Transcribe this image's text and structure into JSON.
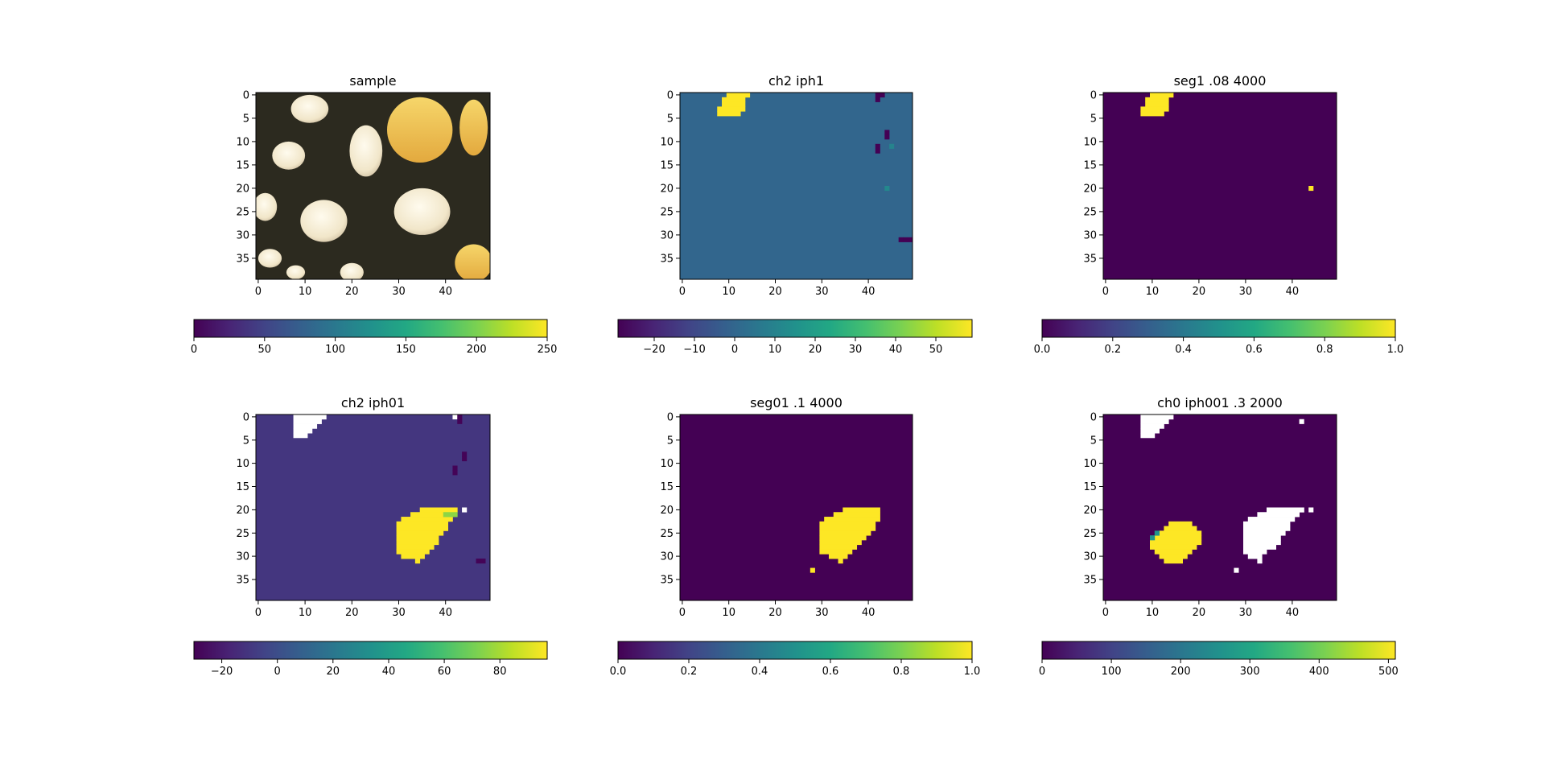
{
  "chart_data": [
    {
      "type": "heatmap",
      "title": "sample",
      "image": "rgb-photo",
      "grid": false,
      "xlim": [
        -0.5,
        49.5
      ],
      "ylim": [
        39.5,
        -0.5
      ],
      "xticks": [
        "0",
        "10",
        "20",
        "30",
        "40"
      ],
      "yticks": [
        "0",
        "5",
        "10",
        "15",
        "20",
        "25",
        "30",
        "35"
      ],
      "colorbar": {
        "min": 0,
        "max": 250,
        "ticks": [
          "0",
          "50",
          "100",
          "150",
          "200",
          "250"
        ],
        "orientation": "horizontal",
        "colormap": "viridis"
      },
      "features": [
        {
          "kind": "ellipse",
          "cx": 11,
          "cy": 3,
          "rx": 4,
          "ry": 3,
          "value": "cream"
        },
        {
          "kind": "ellipse",
          "cx": 23,
          "cy": 12,
          "rx": 3.5,
          "ry": 5.5,
          "value": "cream"
        },
        {
          "kind": "ellipse",
          "cx": 6.5,
          "cy": 13,
          "rx": 3.5,
          "ry": 3,
          "value": "cream"
        },
        {
          "kind": "ellipse",
          "cx": 14,
          "cy": 27,
          "rx": 5,
          "ry": 4.5,
          "value": "cream"
        },
        {
          "kind": "ellipse",
          "cx": 35,
          "cy": 25,
          "rx": 6,
          "ry": 5,
          "value": "cream"
        },
        {
          "kind": "ellipse",
          "cx": 1.5,
          "cy": 24,
          "rx": 2.5,
          "ry": 3,
          "value": "cream"
        },
        {
          "kind": "ellipse",
          "cx": 2.5,
          "cy": 35,
          "rx": 2.5,
          "ry": 2,
          "value": "cream"
        },
        {
          "kind": "ellipse",
          "cx": 20,
          "cy": 38,
          "rx": 2.5,
          "ry": 2,
          "value": "cream"
        },
        {
          "kind": "ellipse",
          "cx": 8,
          "cy": 38,
          "rx": 2,
          "ry": 1.5,
          "value": "cream"
        },
        {
          "kind": "ellipse",
          "cx": 34.5,
          "cy": 7.5,
          "rx": 7,
          "ry": 7,
          "value": "golden"
        },
        {
          "kind": "ellipse",
          "cx": 46,
          "cy": 7,
          "rx": 3,
          "ry": 6,
          "value": "golden"
        },
        {
          "kind": "ellipse",
          "cx": 46,
          "cy": 36,
          "rx": 4,
          "ry": 4,
          "value": "golden"
        }
      ]
    },
    {
      "type": "heatmap",
      "title": "ch2 iph1",
      "grid": false,
      "xlim": [
        -0.5,
        49.5
      ],
      "ylim": [
        39.5,
        -0.5
      ],
      "xticks": [
        "0",
        "10",
        "20",
        "30",
        "40"
      ],
      "yticks": [
        "0",
        "5",
        "10",
        "15",
        "20",
        "25",
        "30",
        "35"
      ],
      "background_value": 0,
      "colorbar": {
        "min": -29,
        "max": 59,
        "ticks": [
          "−20",
          "−10",
          "0",
          "10",
          "20",
          "30",
          "40",
          "50"
        ],
        "tick_values": [
          -20,
          -10,
          0,
          10,
          20,
          30,
          40,
          50
        ],
        "orientation": "horizontal",
        "colormap": "viridis"
      },
      "regions": [
        {
          "value": 59,
          "rows": [
            [
              0,
              10,
              14
            ],
            [
              1,
              9,
              13
            ],
            [
              2,
              9,
              13
            ],
            [
              3,
              8,
              13
            ],
            [
              4,
              8,
              12
            ]
          ]
        }
      ],
      "pixels": [
        [
          42,
          0,
          -29
        ],
        [
          42,
          1,
          -29
        ],
        [
          43,
          0,
          -29
        ],
        [
          44,
          8,
          -29
        ],
        [
          44,
          9,
          -29
        ],
        [
          42,
          11,
          -29
        ],
        [
          42,
          12,
          -29
        ],
        [
          45,
          11,
          10
        ],
        [
          44,
          20,
          12
        ],
        [
          47,
          31,
          -29
        ],
        [
          48,
          31,
          -29
        ],
        [
          49,
          31,
          -29
        ]
      ]
    },
    {
      "type": "heatmap",
      "title": "seg1 .08 4000",
      "grid": false,
      "xlim": [
        -0.5,
        49.5
      ],
      "ylim": [
        39.5,
        -0.5
      ],
      "xticks": [
        "0",
        "10",
        "20",
        "30",
        "40"
      ],
      "yticks": [
        "0",
        "5",
        "10",
        "15",
        "20",
        "25",
        "30",
        "35"
      ],
      "background_value": 0,
      "colorbar": {
        "min": 0.0,
        "max": 1.0,
        "ticks": [
          "0.0",
          "0.2",
          "0.4",
          "0.6",
          "0.8",
          "1.0"
        ],
        "tick_values": [
          0,
          0.2,
          0.4,
          0.6,
          0.8,
          1
        ],
        "orientation": "horizontal",
        "colormap": "viridis"
      },
      "regions": [
        {
          "value": 1,
          "rows": [
            [
              0,
              10,
              14
            ],
            [
              1,
              9,
              13
            ],
            [
              2,
              9,
              13
            ],
            [
              3,
              8,
              13
            ],
            [
              4,
              8,
              12
            ]
          ]
        }
      ],
      "pixels": [
        [
          44,
          20,
          1
        ]
      ]
    },
    {
      "type": "heatmap",
      "title": "ch2 iph01",
      "grid": false,
      "xlim": [
        -0.5,
        49.5
      ],
      "ylim": [
        39.5,
        -0.5
      ],
      "xticks": [
        "0",
        "10",
        "20",
        "30",
        "40"
      ],
      "yticks": [
        "0",
        "5",
        "10",
        "15",
        "20",
        "25",
        "30",
        "35"
      ],
      "background_value": -10,
      "colorbar": {
        "min": -30,
        "max": 97,
        "ticks": [
          "−20",
          "0",
          "20",
          "40",
          "60",
          "80"
        ],
        "tick_values": [
          -20,
          0,
          20,
          40,
          60,
          80
        ],
        "orientation": "horizontal",
        "colormap": "viridis"
      },
      "regions": [
        {
          "value": "white",
          "rows": [
            [
              0,
              8,
              14
            ],
            [
              1,
              8,
              13
            ],
            [
              2,
              8,
              12
            ],
            [
              3,
              8,
              11
            ],
            [
              4,
              8,
              10
            ]
          ]
        },
        {
          "value": 97,
          "rows": [
            [
              20,
              35,
              42
            ],
            [
              21,
              33,
              39
            ],
            [
              22,
              31,
              41
            ],
            [
              23,
              30,
              40
            ],
            [
              24,
              30,
              40
            ],
            [
              25,
              30,
              39
            ],
            [
              26,
              30,
              38
            ],
            [
              27,
              30,
              38
            ],
            [
              28,
              30,
              37
            ],
            [
              29,
              30,
              36
            ],
            [
              30,
              31,
              35
            ],
            [
              31,
              34,
              34
            ]
          ]
        },
        {
          "value": 75,
          "rows": [
            [
              21,
              40,
              42
            ]
          ]
        }
      ],
      "pixels": [
        [
          42,
          0,
          "white"
        ],
        [
          43,
          0,
          -29
        ],
        [
          43,
          1,
          -29
        ],
        [
          44,
          8,
          -29
        ],
        [
          44,
          9,
          -29
        ],
        [
          42,
          11,
          -29
        ],
        [
          42,
          12,
          -29
        ],
        [
          44,
          20,
          "white"
        ],
        [
          47,
          31,
          -29
        ],
        [
          48,
          31,
          -29
        ]
      ]
    },
    {
      "type": "heatmap",
      "title": "seg01 .1 4000",
      "grid": false,
      "xlim": [
        -0.5,
        49.5
      ],
      "ylim": [
        39.5,
        -0.5
      ],
      "xticks": [
        "0",
        "10",
        "20",
        "30",
        "40"
      ],
      "yticks": [
        "0",
        "5",
        "10",
        "15",
        "20",
        "25",
        "30",
        "35"
      ],
      "background_value": 0,
      "colorbar": {
        "min": 0.0,
        "max": 1.0,
        "ticks": [
          "0.0",
          "0.2",
          "0.4",
          "0.6",
          "0.8",
          "1.0"
        ],
        "tick_values": [
          0,
          0.2,
          0.4,
          0.6,
          0.8,
          1
        ],
        "orientation": "horizontal",
        "colormap": "viridis"
      },
      "regions": [
        {
          "value": 1,
          "rows": [
            [
              20,
              35,
              42
            ],
            [
              21,
              33,
              42
            ],
            [
              22,
              31,
              42
            ],
            [
              23,
              30,
              41
            ],
            [
              24,
              30,
              41
            ],
            [
              25,
              30,
              40
            ],
            [
              26,
              30,
              39
            ],
            [
              27,
              30,
              38
            ],
            [
              28,
              30,
              37
            ],
            [
              29,
              30,
              36
            ],
            [
              30,
              32,
              35
            ],
            [
              31,
              34,
              34
            ]
          ]
        }
      ],
      "pixels": [
        [
          28,
          33,
          1
        ]
      ]
    },
    {
      "type": "heatmap",
      "title": "ch0 iph001 .3 2000",
      "grid": false,
      "xlim": [
        -0.5,
        49.5
      ],
      "ylim": [
        39.5,
        -0.5
      ],
      "xticks": [
        "0",
        "10",
        "20",
        "30",
        "40"
      ],
      "yticks": [
        "0",
        "5",
        "10",
        "15",
        "20",
        "25",
        "30",
        "35"
      ],
      "background_value": 0,
      "colorbar": {
        "min": 0,
        "max": 510,
        "ticks": [
          "0",
          "100",
          "200",
          "300",
          "400",
          "500"
        ],
        "tick_values": [
          0,
          100,
          200,
          300,
          400,
          500
        ],
        "orientation": "horizontal",
        "colormap": "viridis"
      },
      "regions": [
        {
          "value": "white",
          "rows": [
            [
              0,
              8,
              14
            ],
            [
              1,
              8,
              13
            ],
            [
              2,
              8,
              12
            ],
            [
              3,
              8,
              11
            ],
            [
              4,
              8,
              10
            ]
          ]
        },
        {
          "value": "white",
          "rows": [
            [
              20,
              35,
              42
            ],
            [
              21,
              33,
              41
            ],
            [
              22,
              31,
              40
            ],
            [
              23,
              30,
              39
            ],
            [
              24,
              30,
              39
            ],
            [
              25,
              30,
              38
            ],
            [
              26,
              30,
              37
            ],
            [
              27,
              30,
              37
            ],
            [
              28,
              30,
              36
            ],
            [
              29,
              30,
              34
            ],
            [
              30,
              31,
              33
            ],
            [
              31,
              33,
              33
            ]
          ]
        },
        {
          "value": 510,
          "rows": [
            [
              23,
              14,
              18
            ],
            [
              24,
              13,
              19
            ],
            [
              25,
              12,
              20
            ],
            [
              26,
              11,
              20
            ],
            [
              27,
              10,
              20
            ],
            [
              28,
              10,
              19
            ],
            [
              29,
              11,
              18
            ],
            [
              30,
              12,
              17
            ],
            [
              31,
              13,
              16
            ]
          ]
        },
        {
          "value": 260,
          "rows": [
            [
              25,
              11,
              11
            ],
            [
              26,
              10,
              10
            ]
          ]
        }
      ],
      "pixels": [
        [
          42,
          1,
          "white"
        ],
        [
          44,
          20,
          "white"
        ],
        [
          28,
          33,
          "white"
        ]
      ]
    }
  ]
}
